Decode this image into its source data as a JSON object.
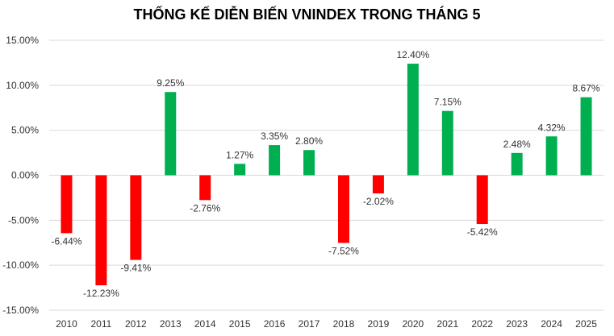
{
  "chart_data": {
    "type": "bar",
    "title": "THỐNG KẾ DIỄN BIẾN VNINDEX TRONG THÁNG 5",
    "xlabel": "",
    "ylabel": "",
    "categories": [
      "2010",
      "2011",
      "2012",
      "2013",
      "2014",
      "2015",
      "2016",
      "2017",
      "2018",
      "2019",
      "2020",
      "2021",
      "2022",
      "2023",
      "2024",
      "2025"
    ],
    "values": [
      -6.44,
      -12.23,
      -9.41,
      9.25,
      -2.76,
      1.27,
      3.35,
      2.8,
      -7.52,
      -2.02,
      12.4,
      7.15,
      -5.42,
      2.48,
      4.32,
      8.67
    ],
    "data_labels": [
      "-6.44%",
      "-12.23%",
      "-9.41%",
      "9.25%",
      "-2.76%",
      "1.27%",
      "3.35%",
      "2.80%",
      "-7.52%",
      "-2.02%",
      "12.40%",
      "7.15%",
      "-5.42%",
      "2.48%",
      "4.32%",
      "8.67%"
    ],
    "y_ticks": [
      15,
      10,
      5,
      0,
      -5,
      -10,
      -15
    ],
    "y_tick_labels": [
      "15.00%",
      "10.00%",
      "5.00%",
      "0.00%",
      "-5.00%",
      "-10.00%",
      "-15.00%"
    ],
    "ylim": [
      -15,
      15
    ],
    "grid": true,
    "legend": "none",
    "colors": {
      "positive": "#00b050",
      "negative": "#ff0000",
      "grid": "#d9d9d9",
      "text": "#333333"
    }
  }
}
